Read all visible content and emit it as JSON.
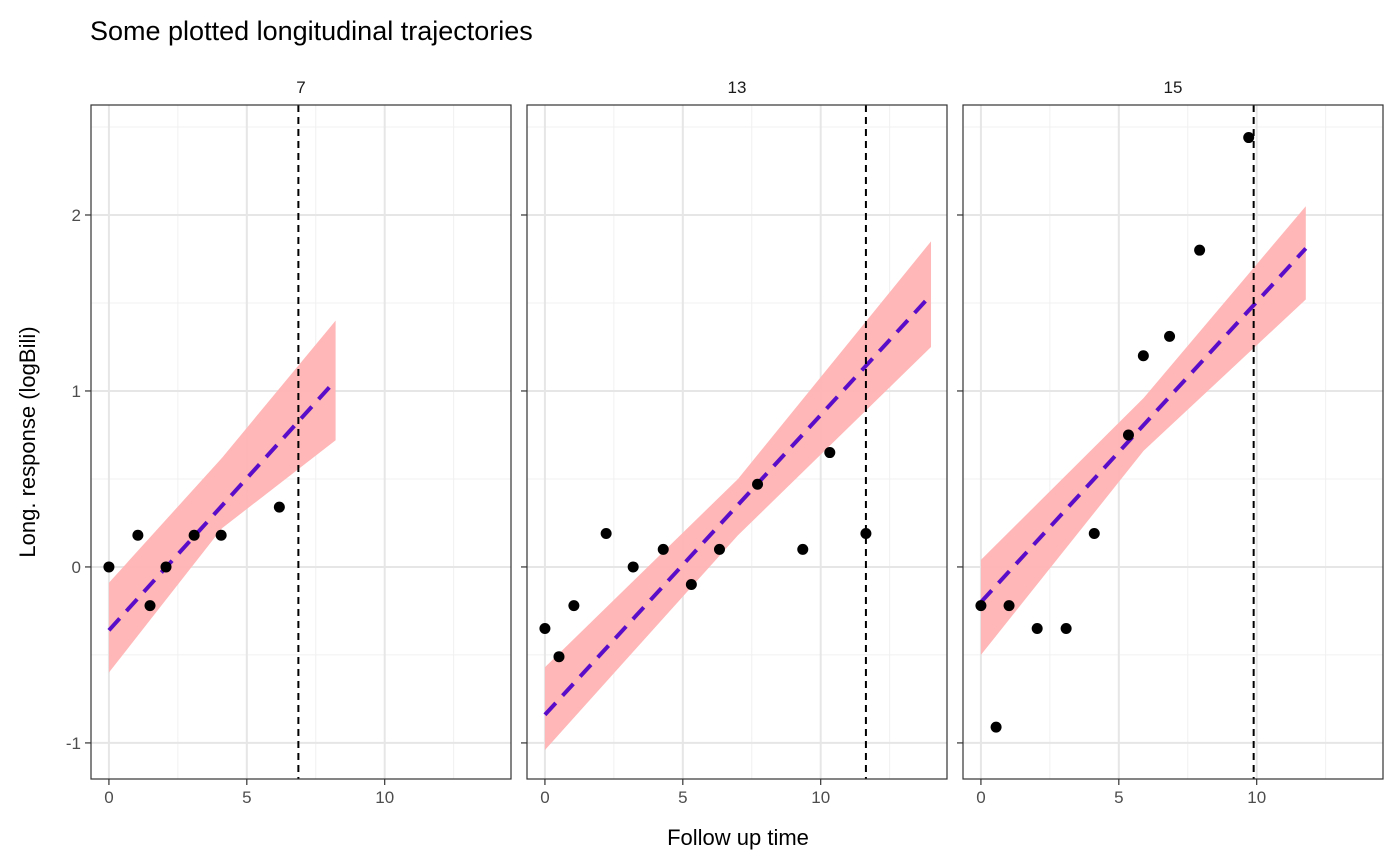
{
  "chart_data": {
    "type": "scatter",
    "title": "Some plotted longitudinal trajectories",
    "xlabel": "Follow up time",
    "ylabel": "Long. response (logBili)",
    "xlim": [
      -0.65,
      14.58
    ],
    "ylim": [
      -1.205,
      2.625
    ],
    "x_ticks": [
      0,
      5,
      10
    ],
    "x_tick_labels": [
      "0",
      "5",
      "10"
    ],
    "y_ticks": [
      -1,
      0,
      1,
      2
    ],
    "y_tick_labels": [
      "-1",
      "0",
      "1",
      "2"
    ],
    "grid": true,
    "colors": {
      "points": "#000000",
      "fit_line": "#5a0dc9",
      "band": "#ffb3b3",
      "event_line": "#000000"
    },
    "panels": [
      {
        "label": "7",
        "points": [
          [
            0,
            0
          ],
          [
            1.05,
            0.18
          ],
          [
            1.49,
            -0.22
          ],
          [
            2.07,
            0
          ],
          [
            3.09,
            0.18
          ],
          [
            4.07,
            0.18
          ],
          [
            6.18,
            0.34
          ]
        ],
        "event_time": 6.87,
        "fit": [
          [
            0,
            -0.36
          ],
          [
            8.22,
            1.06
          ]
        ],
        "band": {
          "x": [
            0,
            4.1,
            8.22
          ],
          "upper": [
            -0.09,
            0.62,
            1.4
          ],
          "lower": [
            -0.6,
            0.22,
            0.72
          ]
        }
      },
      {
        "label": "13",
        "points": [
          [
            0,
            -0.35
          ],
          [
            0.51,
            -0.51
          ],
          [
            1.05,
            -0.22
          ],
          [
            2.22,
            0.19
          ],
          [
            3.2,
            0
          ],
          [
            4.29,
            0.1
          ],
          [
            5.31,
            -0.1
          ],
          [
            6.33,
            0.1
          ],
          [
            7.71,
            0.47
          ],
          [
            9.35,
            0.1
          ],
          [
            10.33,
            0.65
          ],
          [
            11.64,
            0.19
          ]
        ],
        "event_time": 11.64,
        "fit": [
          [
            0,
            -0.84
          ],
          [
            14.0,
            1.545
          ]
        ],
        "band": {
          "x": [
            0,
            7.0,
            14.0
          ],
          "upper": [
            -0.57,
            0.5,
            1.85
          ],
          "lower": [
            -1.04,
            0.18,
            1.25
          ]
        }
      },
      {
        "label": "15",
        "points": [
          [
            0,
            -0.22
          ],
          [
            0.55,
            -0.91
          ],
          [
            1.02,
            -0.22
          ],
          [
            2.04,
            -0.35
          ],
          [
            3.09,
            -0.35
          ],
          [
            4.11,
            0.19
          ],
          [
            5.35,
            0.75
          ],
          [
            5.89,
            1.2
          ],
          [
            6.84,
            1.31
          ],
          [
            7.93,
            1.8
          ],
          [
            9.71,
            2.44
          ]
        ],
        "event_time": 9.89,
        "fit": [
          [
            0,
            -0.2
          ],
          [
            11.78,
            1.81
          ]
        ],
        "band": {
          "x": [
            0,
            5.9,
            11.78
          ],
          "upper": [
            0.04,
            0.96,
            2.05
          ],
          "lower": [
            -0.5,
            0.66,
            1.52
          ]
        }
      }
    ]
  }
}
